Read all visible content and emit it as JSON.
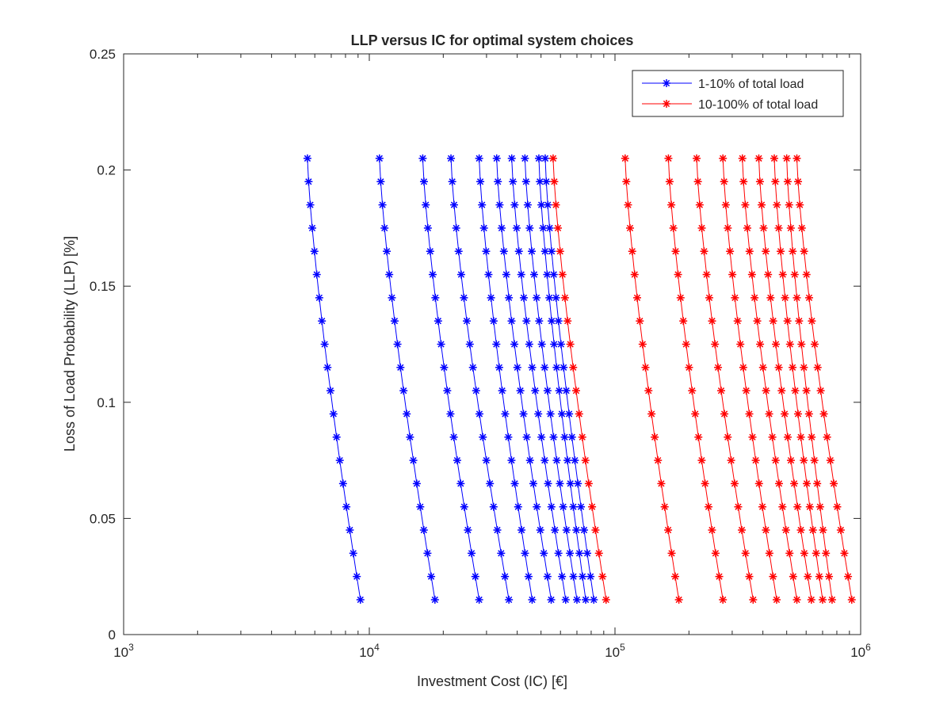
{
  "chart_data": {
    "type": "line",
    "title": "LLP versus IC for optimal system choices",
    "xlabel": "Investment Cost (IC) [€]",
    "ylabel": "Loss of Load Probability (LLP) [%]",
    "xscale": "log",
    "xlim": [
      1000,
      1000000
    ],
    "ylim": [
      0,
      0.25
    ],
    "x_ticks": [
      {
        "value": 1000,
        "base": "10",
        "exp": "3"
      },
      {
        "value": 10000,
        "base": "10",
        "exp": "4"
      },
      {
        "value": 100000,
        "base": "10",
        "exp": "5"
      },
      {
        "value": 1000000,
        "base": "10",
        "exp": "6"
      }
    ],
    "y_ticks": [
      {
        "value": 0,
        "label": "0"
      },
      {
        "value": 0.05,
        "label": "0.05"
      },
      {
        "value": 0.1,
        "label": "0.1"
      },
      {
        "value": 0.15,
        "label": "0.15"
      },
      {
        "value": 0.2,
        "label": "0.2"
      },
      {
        "value": 0.25,
        "label": "0.25"
      }
    ],
    "grid": false,
    "legend_position": "top-right",
    "y": [
      0.205,
      0.195,
      0.185,
      0.175,
      0.165,
      0.155,
      0.145,
      0.135,
      0.125,
      0.115,
      0.105,
      0.095,
      0.085,
      0.075,
      0.065,
      0.055,
      0.045,
      0.035,
      0.025,
      0.015
    ],
    "series": [
      {
        "name": "1-10% of total load",
        "color": "#0000ff",
        "marker": "asterisk",
        "curves": [
          {
            "ic_top": 5600,
            "ic_bottom": 9200
          },
          {
            "ic_top": 11000,
            "ic_bottom": 18500
          },
          {
            "ic_top": 16500,
            "ic_bottom": 28000
          },
          {
            "ic_top": 21500,
            "ic_bottom": 37000
          },
          {
            "ic_top": 28000,
            "ic_bottom": 46000
          },
          {
            "ic_top": 33000,
            "ic_bottom": 55000
          },
          {
            "ic_top": 38000,
            "ic_bottom": 63000
          },
          {
            "ic_top": 43000,
            "ic_bottom": 70000
          },
          {
            "ic_top": 49000,
            "ic_bottom": 76000
          },
          {
            "ic_top": 52000,
            "ic_bottom": 82000
          }
        ]
      },
      {
        "name": "10-100% of total load",
        "color": "#ff0000",
        "marker": "asterisk",
        "curves": [
          {
            "ic_top": 56000,
            "ic_bottom": 92000
          },
          {
            "ic_top": 110000,
            "ic_bottom": 182000
          },
          {
            "ic_top": 165000,
            "ic_bottom": 275000
          },
          {
            "ic_top": 215000,
            "ic_bottom": 365000
          },
          {
            "ic_top": 275000,
            "ic_bottom": 455000
          },
          {
            "ic_top": 330000,
            "ic_bottom": 550000
          },
          {
            "ic_top": 385000,
            "ic_bottom": 630000
          },
          {
            "ic_top": 445000,
            "ic_bottom": 700000
          },
          {
            "ic_top": 500000,
            "ic_bottom": 765000
          },
          {
            "ic_top": 550000,
            "ic_bottom": 920000
          }
        ]
      }
    ]
  }
}
